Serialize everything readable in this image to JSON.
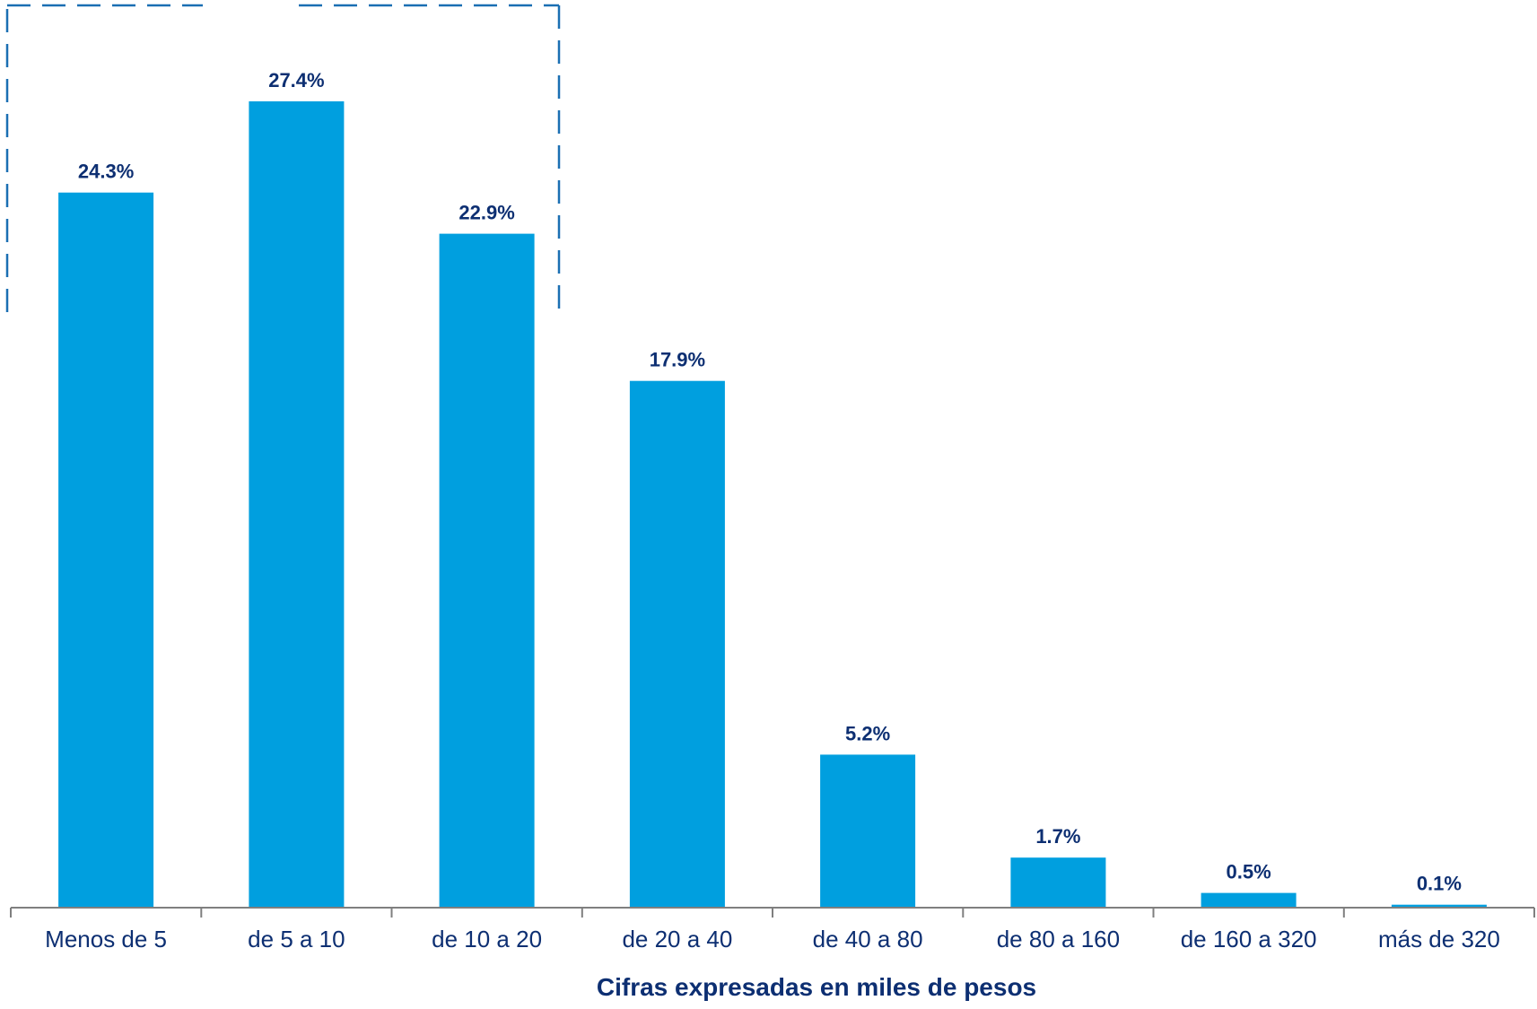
{
  "chart_data": {
    "type": "bar",
    "categories": [
      "Menos de 5",
      "de 5 a 10",
      "de 10 a 20",
      "de 20 a 40",
      "de 40 a 80",
      "de 80 a 160",
      "de 160 a 320",
      "más de 320"
    ],
    "values": [
      24.3,
      27.4,
      22.9,
      17.9,
      5.2,
      1.7,
      0.5,
      0.1
    ],
    "value_labels": [
      "24.3%",
      "27.4%",
      "22.9%",
      "17.9%",
      "5.2%",
      "1.7%",
      "0.5%",
      "0.1%"
    ],
    "unit": "%",
    "xlabel": "Cifras expresadas en miles de pesos",
    "ylabel": "",
    "ylim": [
      0,
      30
    ],
    "grid": false,
    "legend": "none",
    "highlight_bracket": {
      "categories": [
        "Menos de 5",
        "de 5 a 10",
        "de 10 a 20"
      ],
      "style": "dashed"
    },
    "colors": {
      "bar": "#009fdf",
      "labels": "#0d2f72",
      "axis": "#7f7f7f",
      "bracket": "#1a6fb3"
    }
  }
}
